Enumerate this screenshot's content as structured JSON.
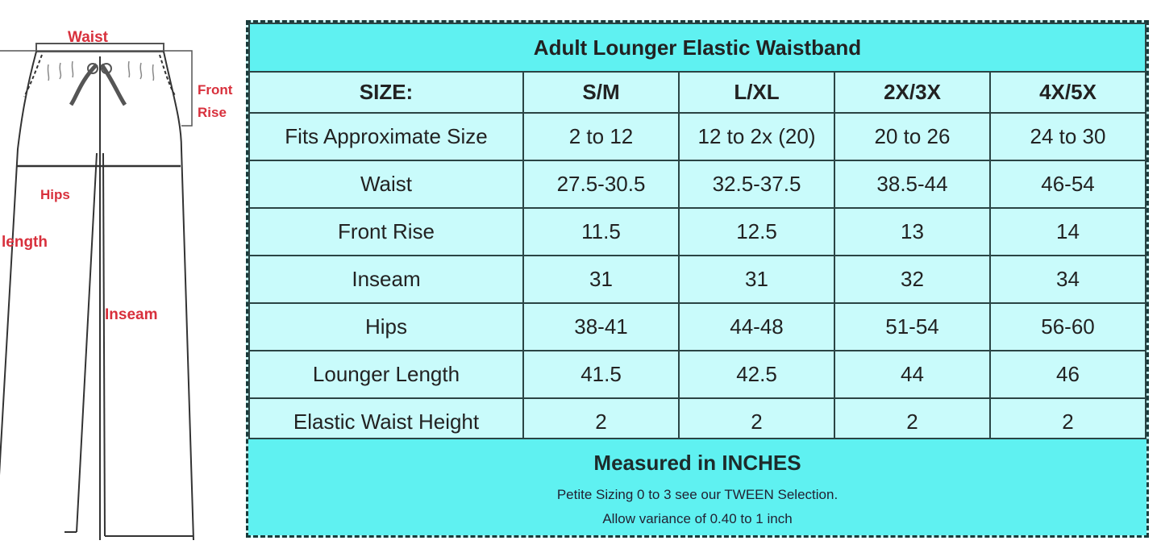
{
  "diagram": {
    "labels": {
      "waist": "Waist",
      "front_rise_1": "Front",
      "front_rise_2": "Rise",
      "hips": "Hips",
      "length": "length",
      "inseam": "Inseam"
    },
    "label_color": "#d8303c"
  },
  "chart": {
    "title": "Adult Lounger Elastic Waistband",
    "header": [
      "SIZE:",
      "S/M",
      "L/XL",
      "2X/3X",
      "4X/5X"
    ],
    "rows": [
      [
        "Fits Approximate Size",
        "2 to 12",
        "12 to 2x (20)",
        "20 to 26",
        "24 to 30"
      ],
      [
        "Waist",
        "27.5-30.5",
        "32.5-37.5",
        "38.5-44",
        "46-54"
      ],
      [
        "Front Rise",
        "11.5",
        "12.5",
        "13",
        "14"
      ],
      [
        "Inseam",
        "31",
        "31",
        "32",
        "34"
      ],
      [
        "Hips",
        "38-41",
        "44-48",
        "51-54",
        "56-60"
      ],
      [
        "Lounger Length",
        "41.5",
        "42.5",
        "44",
        "46"
      ],
      [
        "Elastic Waist Height",
        "2",
        "2",
        "2",
        "2"
      ]
    ],
    "footer": {
      "main": "Measured in INCHES",
      "note1": "Petite Sizing 0 to 3 see our TWEEN Selection.",
      "note2": "Allow variance of 0.40 to 1 inch"
    },
    "colors": {
      "accent": "#5ff1f1",
      "cell": "#c9fbfb",
      "border": "#2a4444"
    }
  }
}
